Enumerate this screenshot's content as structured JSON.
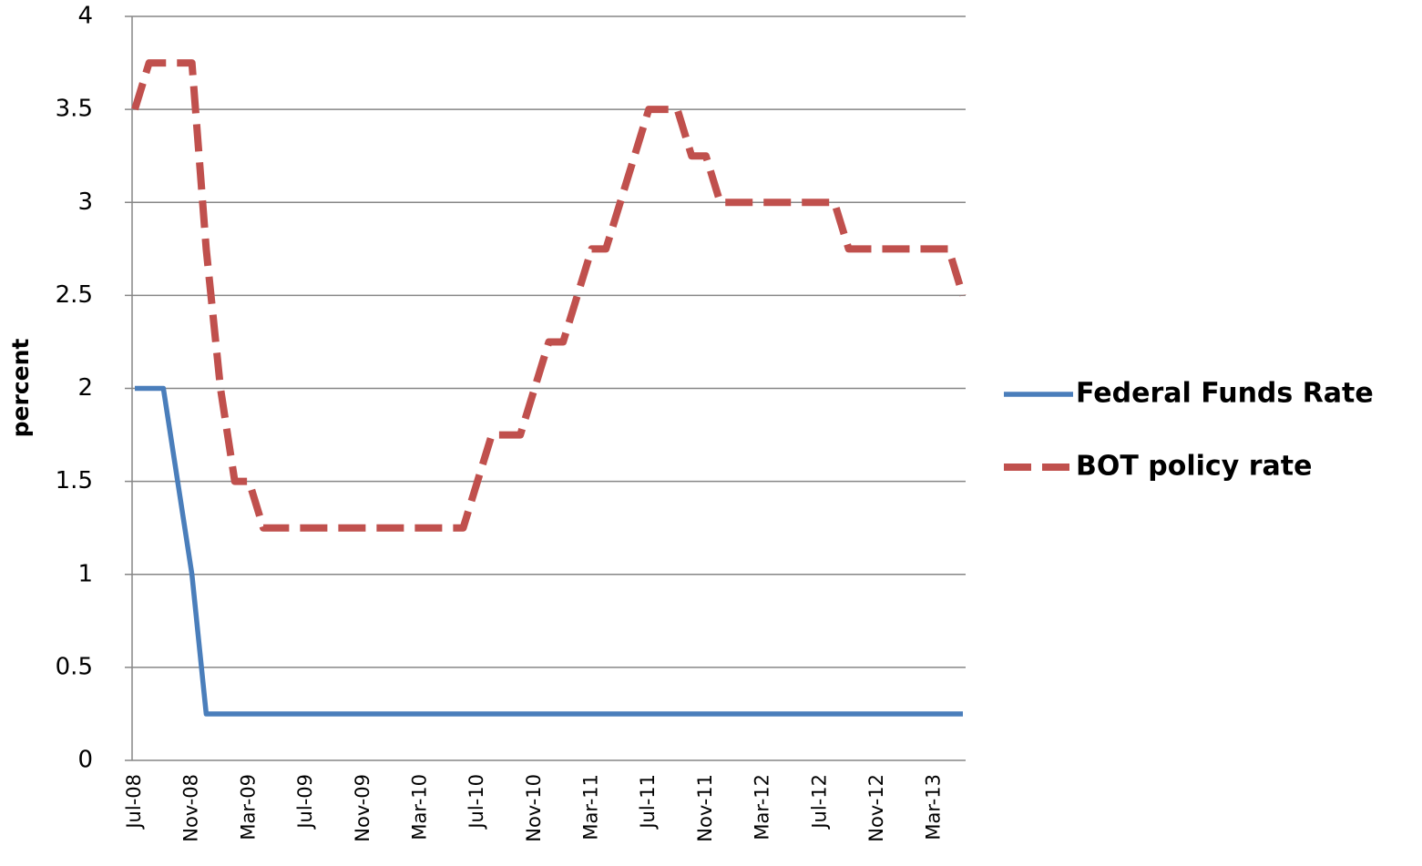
{
  "chart_data": {
    "type": "line",
    "y_label": "percent",
    "categories": [
      "Jul-08",
      null,
      null,
      null,
      "Nov-08",
      null,
      null,
      null,
      "Mar-09",
      null,
      null,
      null,
      "Jul-09",
      null,
      null,
      null,
      "Nov-09",
      null,
      null,
      null,
      "Mar-10",
      null,
      null,
      null,
      "Jul-10",
      null,
      null,
      null,
      "Nov-10",
      null,
      null,
      null,
      "Mar-11",
      null,
      null,
      null,
      "Jul-11",
      null,
      null,
      null,
      "Nov-11",
      null,
      null,
      null,
      "Mar-12",
      null,
      null,
      null,
      "Jul-12",
      null,
      null,
      null,
      "Nov-12",
      null,
      null,
      null,
      "Mar-13",
      null,
      null
    ],
    "series": [
      {
        "name": "Federal Funds Rate",
        "color": "#4a7ebb",
        "dashed": false,
        "values": [
          2,
          2,
          2,
          1.5,
          1,
          0.25,
          0.25,
          0.25,
          0.25,
          0.25,
          0.25,
          0.25,
          0.25,
          0.25,
          0.25,
          0.25,
          0.25,
          0.25,
          0.25,
          0.25,
          0.25,
          0.25,
          0.25,
          0.25,
          0.25,
          0.25,
          0.25,
          0.25,
          0.25,
          0.25,
          0.25,
          0.25,
          0.25,
          0.25,
          0.25,
          0.25,
          0.25,
          0.25,
          0.25,
          0.25,
          0.25,
          0.25,
          0.25,
          0.25,
          0.25,
          0.25,
          0.25,
          0.25,
          0.25,
          0.25,
          0.25,
          0.25,
          0.25,
          0.25,
          0.25,
          0.25,
          0.25,
          0.25,
          0.25
        ]
      },
      {
        "name": "BOT policy rate",
        "color": "#c0504d",
        "dashed": true,
        "values": [
          3.5,
          3.75,
          3.75,
          3.75,
          3.75,
          2.75,
          2.0,
          1.5,
          1.5,
          1.25,
          1.25,
          1.25,
          1.25,
          1.25,
          1.25,
          1.25,
          1.25,
          1.25,
          1.25,
          1.25,
          1.25,
          1.25,
          1.25,
          1.25,
          1.5,
          1.75,
          1.75,
          1.75,
          2.0,
          2.25,
          2.25,
          2.5,
          2.75,
          2.75,
          3.0,
          3.25,
          3.5,
          3.5,
          3.5,
          3.25,
          3.25,
          3.0,
          3.0,
          3.0,
          3.0,
          3.0,
          3.0,
          3.0,
          3.0,
          3.0,
          2.75,
          2.75,
          2.75,
          2.75,
          2.75,
          2.75,
          2.75,
          2.75,
          2.5
        ]
      }
    ],
    "ylim": [
      0,
      4
    ],
    "yticks": [
      0,
      0.5,
      1,
      1.5,
      2,
      2.5,
      3,
      3.5,
      4
    ],
    "grid": true,
    "legend": "right"
  }
}
